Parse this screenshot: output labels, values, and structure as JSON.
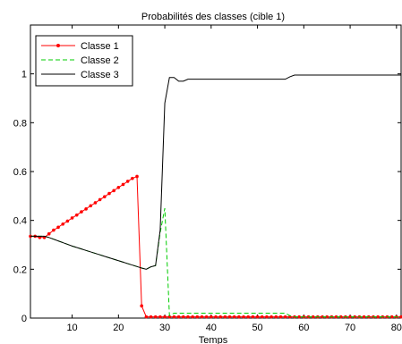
{
  "chart_data": {
    "type": "line",
    "title": "Probabilités des classes (cible 1)",
    "xlabel": "Temps",
    "ylabel": "",
    "xlim": [
      1,
      81
    ],
    "ylim": [
      0,
      1.2
    ],
    "xticks": [
      10,
      20,
      30,
      40,
      50,
      60,
      70,
      80
    ],
    "yticks": [
      0,
      0.2,
      0.4,
      0.6,
      0.8,
      1
    ],
    "grid": false,
    "legend_position": "top-left",
    "x": [
      1,
      2,
      3,
      4,
      5,
      6,
      7,
      8,
      9,
      10,
      11,
      12,
      13,
      14,
      15,
      16,
      17,
      18,
      19,
      20,
      21,
      22,
      23,
      24,
      25,
      26,
      27,
      28,
      29,
      30,
      31,
      32,
      33,
      34,
      35,
      36,
      37,
      38,
      39,
      40,
      41,
      42,
      43,
      44,
      45,
      46,
      47,
      48,
      49,
      50,
      51,
      52,
      53,
      54,
      55,
      56,
      57,
      58,
      59,
      60,
      61,
      62,
      63,
      64,
      65,
      66,
      67,
      68,
      69,
      70,
      71,
      72,
      73,
      74,
      75,
      76,
      77,
      78,
      79,
      80,
      81
    ],
    "series": [
      {
        "name": "Classe 1",
        "color": "#ff0000",
        "style": "solid-dot",
        "values": [
          0.335,
          0.335,
          0.33,
          0.33,
          0.345,
          0.36,
          0.372,
          0.385,
          0.397,
          0.41,
          0.422,
          0.435,
          0.447,
          0.46,
          0.472,
          0.485,
          0.497,
          0.51,
          0.522,
          0.535,
          0.547,
          0.56,
          0.572,
          0.58,
          0.05,
          0.005,
          0.005,
          0.005,
          0.005,
          0.005,
          0.005,
          0.005,
          0.005,
          0.005,
          0.005,
          0.005,
          0.005,
          0.005,
          0.005,
          0.005,
          0.005,
          0.005,
          0.005,
          0.005,
          0.005,
          0.005,
          0.005,
          0.005,
          0.005,
          0.005,
          0.005,
          0.005,
          0.005,
          0.005,
          0.005,
          0.005,
          0.005,
          0.005,
          0.005,
          0.005,
          0.005,
          0.005,
          0.005,
          0.005,
          0.005,
          0.005,
          0.005,
          0.005,
          0.005,
          0.005,
          0.005,
          0.005,
          0.005,
          0.005,
          0.005,
          0.005,
          0.005,
          0.005,
          0.005,
          0.005,
          0.005
        ],
        "values_note": ""
      },
      {
        "name": "Classe 2",
        "color": "#00cc00",
        "style": "dashed",
        "values": [
          0.335,
          0.335,
          0.335,
          0.335,
          0.33,
          0.323,
          0.316,
          0.309,
          0.302,
          0.295,
          0.289,
          0.283,
          0.277,
          0.271,
          0.265,
          0.259,
          0.253,
          0.247,
          0.241,
          0.235,
          0.229,
          0.223,
          0.217,
          0.211,
          0.205,
          0.2,
          0.21,
          0.215,
          0.35,
          0.45,
          0.01,
          0.02,
          0.02,
          0.02,
          0.02,
          0.02,
          0.02,
          0.02,
          0.02,
          0.02,
          0.02,
          0.02,
          0.02,
          0.02,
          0.02,
          0.02,
          0.02,
          0.02,
          0.02,
          0.02,
          0.02,
          0.02,
          0.02,
          0.02,
          0.02,
          0.02,
          0.01,
          0.005,
          0.005,
          0.005,
          0.005,
          0.005,
          0.005,
          0.005,
          0.005,
          0.005,
          0.005,
          0.005,
          0.005,
          0.005,
          0.005,
          0.005,
          0.005,
          0.005,
          0.005,
          0.005,
          0.005,
          0.005,
          0.005,
          0.005,
          0.005
        ]
      },
      {
        "name": "Classe 3",
        "color": "#000000",
        "style": "solid",
        "values": [
          0.335,
          0.335,
          0.335,
          0.335,
          0.33,
          0.323,
          0.316,
          0.309,
          0.302,
          0.295,
          0.289,
          0.283,
          0.277,
          0.271,
          0.265,
          0.259,
          0.253,
          0.247,
          0.241,
          0.235,
          0.229,
          0.223,
          0.217,
          0.211,
          0.205,
          0.2,
          0.21,
          0.215,
          0.36,
          0.88,
          0.985,
          0.985,
          0.97,
          0.97,
          0.978,
          0.978,
          0.978,
          0.978,
          0.978,
          0.978,
          0.978,
          0.978,
          0.978,
          0.978,
          0.978,
          0.978,
          0.978,
          0.978,
          0.978,
          0.978,
          0.978,
          0.978,
          0.978,
          0.978,
          0.978,
          0.978,
          0.988,
          0.995,
          0.995,
          0.995,
          0.995,
          0.995,
          0.995,
          0.995,
          0.995,
          0.995,
          0.995,
          0.995,
          0.995,
          0.995,
          0.995,
          0.995,
          0.995,
          0.995,
          0.995,
          0.995,
          0.995,
          0.995,
          0.995,
          0.995,
          0.995
        ]
      }
    ]
  }
}
